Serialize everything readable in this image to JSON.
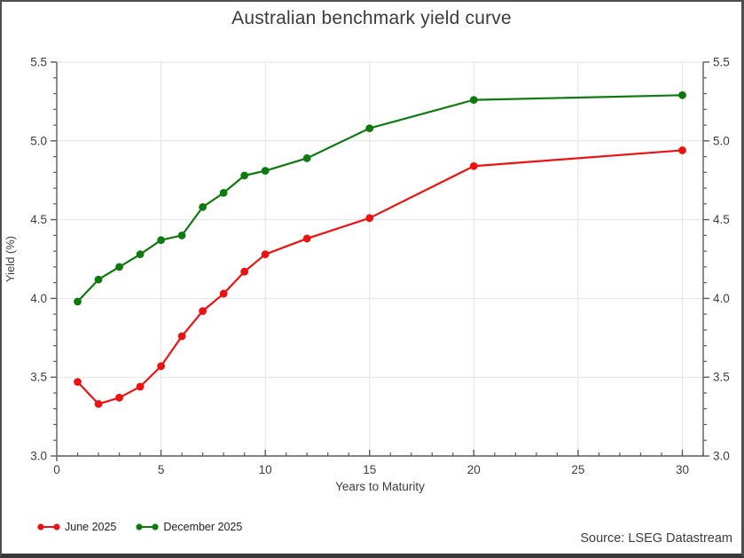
{
  "chart_data": {
    "type": "line",
    "title": "Australian benchmark yield curve",
    "xlabel": "Years to Maturity",
    "ylabel": "Yield (%)",
    "xlim": [
      0,
      31
    ],
    "ylim": [
      3.0,
      5.5
    ],
    "x_major_ticks": [
      0,
      5,
      10,
      15,
      20,
      25,
      30
    ],
    "x_minor_step": 1,
    "y_major_ticks": [
      3.0,
      3.5,
      4.0,
      4.5,
      5.0,
      5.5
    ],
    "y_minor_step": 0.1,
    "y_tick_decimals": 1,
    "grid": true,
    "y_axis_right_mirror": true,
    "legend_position": "bottom-left",
    "x": [
      1,
      2,
      3,
      4,
      5,
      6,
      7,
      8,
      9,
      10,
      12,
      15,
      20,
      30
    ],
    "series": [
      {
        "name": "June 2025",
        "color": "#ee1111",
        "values": [
          3.47,
          3.33,
          3.37,
          3.44,
          3.57,
          3.76,
          3.92,
          4.03,
          4.17,
          4.28,
          4.38,
          4.51,
          4.84,
          4.94
        ]
      },
      {
        "name": "December 2025",
        "color": "#0e7a0e",
        "values": [
          3.98,
          4.12,
          4.2,
          4.28,
          4.37,
          4.4,
          4.58,
          4.67,
          4.78,
          4.81,
          4.89,
          5.08,
          5.26,
          5.29
        ]
      }
    ],
    "colors": {
      "grid": "#e3e3e3",
      "spine": "#707070",
      "tick": "#5a5a5a",
      "tick_label": "#3e3e3e",
      "title": "#3b3b3b"
    }
  },
  "source": "Source: LSEG Datastream"
}
